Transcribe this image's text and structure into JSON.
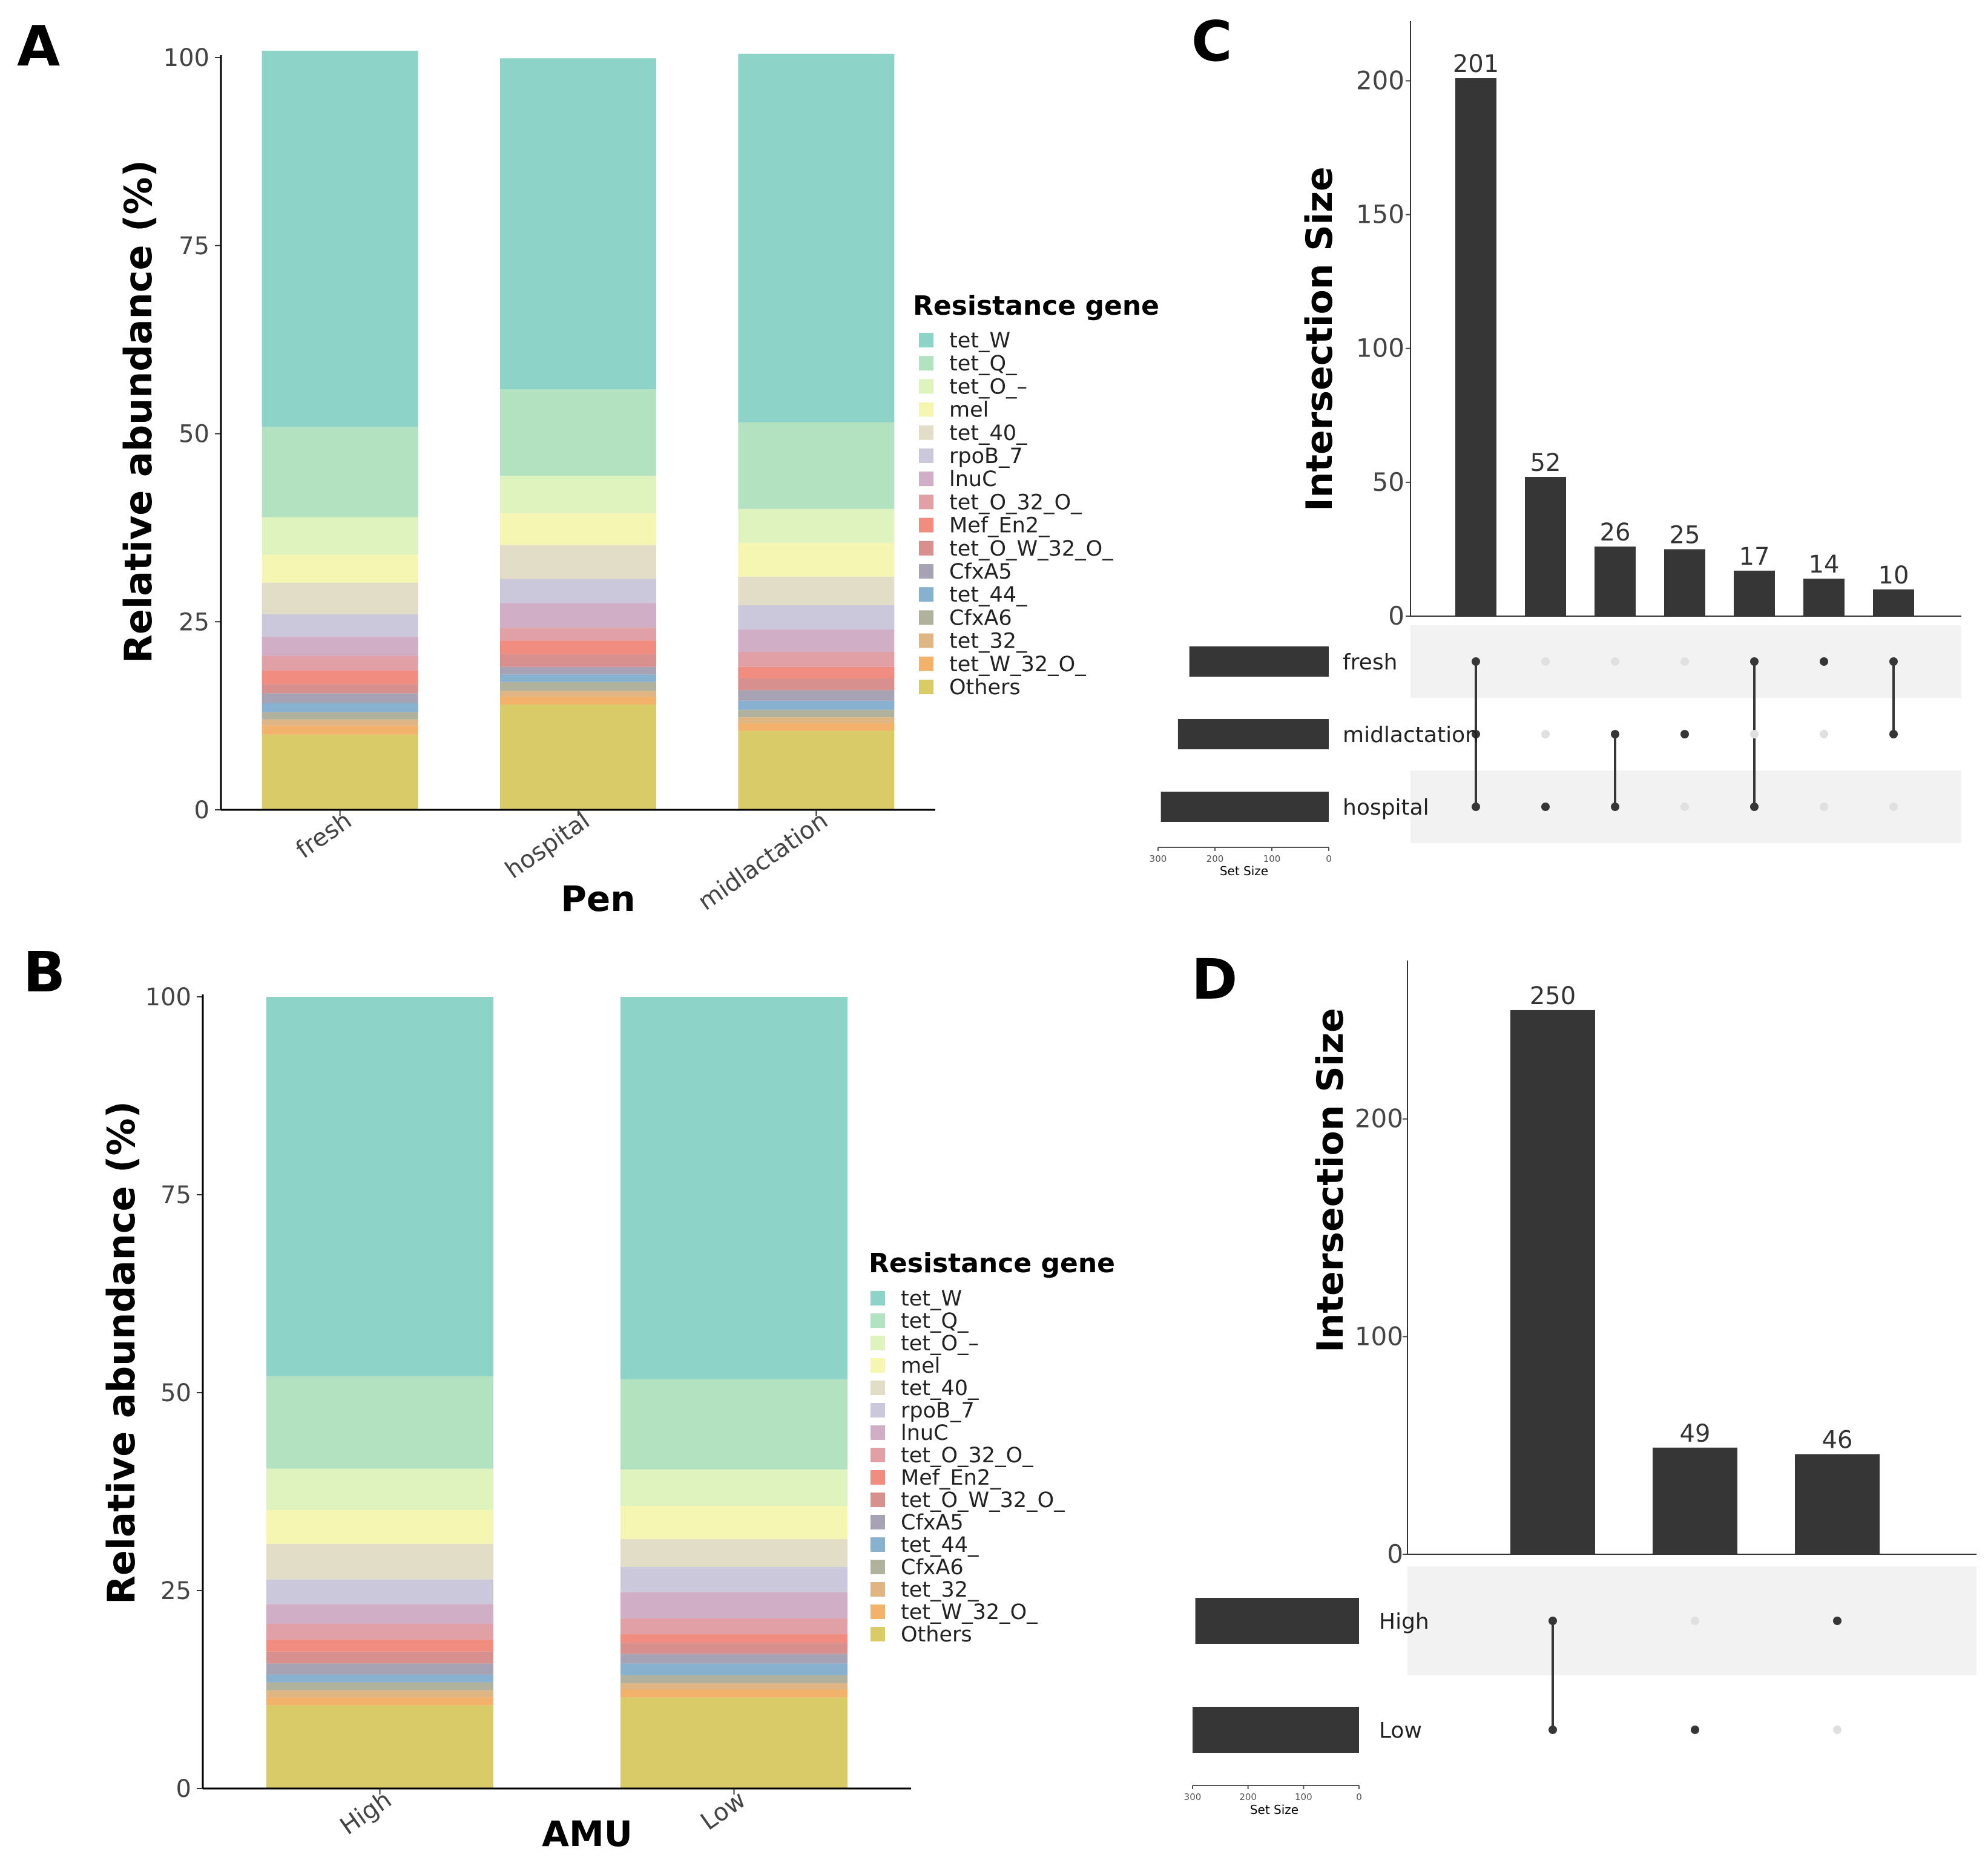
{
  "colors": {
    "tet_W": "#8dd3c7",
    "tet_Q_": "#b3e2c1",
    "tet_O_-": "#dff3bf",
    "mel": "#f6f6b3",
    "tet_40_": "#e1ddc6",
    "rpoB_7": "#cac8da",
    "lnuC": "#d0aec6",
    "tet_O_32_O_": "#e0a0a6",
    "Mef_En2_": "#f08d80",
    "tet_O_W_32_O_": "#d8908f",
    "CfxA5": "#a7a2b4",
    "tet_44_": "#88b0cf",
    "CfxA6": "#b1b29d",
    "tet_32_": "#dfb683",
    "tet_W_32_O_": "#f2b26b",
    "Others": "#d9cb68",
    "bar_dark": "#363636",
    "dot_dark": "#363636",
    "dot_light": "#e0e0e0",
    "stripe": "#f2f2f2"
  },
  "chart_data": [
    {
      "panel": "A",
      "type": "bar",
      "stacked": true,
      "xlabel": "Pen",
      "ylabel": "Relative abundance (%)",
      "ylim": [
        0,
        100
      ],
      "yticks": [
        "0",
        "25",
        "50",
        "75",
        "100"
      ],
      "categories": [
        "fresh",
        "hospital",
        "midlactation"
      ],
      "legend_title": "Resistance gene",
      "legend_entries": [
        "tet_W",
        "tet_Q_",
        "tet_O_–",
        "mel",
        "tet_40_",
        "rpoB_7",
        "lnuC",
        "tet_O_32_O_",
        "Mef_En2_",
        "tet_O_W_32_O_",
        "CfxA5",
        "tet_44_",
        "CfxA6",
        "tet_32_",
        "tet_W_32_O_",
        "Others"
      ],
      "series": [
        {
          "name": "Others",
          "values": [
            10,
            14,
            10.5
          ]
        },
        {
          "name": "tet_W_32_O_",
          "values": [
            1.2,
            1.0,
            1.0
          ]
        },
        {
          "name": "tet_32_",
          "values": [
            0.8,
            0.8,
            0.8
          ]
        },
        {
          "name": "CfxA6",
          "values": [
            1.0,
            1.2,
            1.0
          ]
        },
        {
          "name": "tet_44_",
          "values": [
            1.2,
            1.0,
            1.2
          ]
        },
        {
          "name": "CfxA5",
          "values": [
            1.3,
            1.0,
            1.4
          ]
        },
        {
          "name": "tet_O_W_32_O_",
          "values": [
            1.2,
            1.7,
            1.6
          ]
        },
        {
          "name": "Mef_En2_",
          "values": [
            1.8,
            1.8,
            1.5
          ]
        },
        {
          "name": "tet_O_32_O_",
          "values": [
            2.0,
            1.7,
            2.0
          ]
        },
        {
          "name": "lnuC",
          "values": [
            2.5,
            3.3,
            3.0
          ]
        },
        {
          "name": "rpoB_7",
          "values": [
            3.0,
            3.2,
            3.2
          ]
        },
        {
          "name": "tet_40_",
          "values": [
            4.2,
            4.5,
            3.8
          ]
        },
        {
          "name": "mel",
          "values": [
            3.7,
            4.2,
            4.5
          ]
        },
        {
          "name": "tet_O_-",
          "values": [
            5.0,
            5.0,
            4.5
          ]
        },
        {
          "name": "tet_Q_",
          "values": [
            12.0,
            11.5,
            11.5
          ]
        },
        {
          "name": "tet_W",
          "values": [
            50.0,
            44.0,
            49.0
          ]
        }
      ]
    },
    {
      "panel": "B",
      "type": "bar",
      "stacked": true,
      "xlabel": "AMU",
      "ylabel": "Relative abundance (%)",
      "ylim": [
        0,
        100
      ],
      "yticks": [
        "0",
        "25",
        "50",
        "75",
        "100"
      ],
      "categories": [
        "High",
        "Low"
      ],
      "legend_title": "Resistance gene",
      "legend_entries": [
        "tet_W",
        "tet_Q_",
        "tet_O_–",
        "mel",
        "tet_40_",
        "rpoB_7",
        "lnuC",
        "tet_O_32_O_",
        "Mef_En2_",
        "tet_O_W_32_O_",
        "CfxA5",
        "tet_44_",
        "CfxA6",
        "tet_32_",
        "tet_W_32_O_",
        "Others"
      ],
      "series": [
        {
          "name": "Others",
          "values": [
            10.5,
            11.5
          ]
        },
        {
          "name": "tet_W_32_O_",
          "values": [
            1.0,
            1.0
          ]
        },
        {
          "name": "tet_32_",
          "values": [
            0.9,
            0.8
          ]
        },
        {
          "name": "CfxA6",
          "values": [
            1.0,
            1.0
          ]
        },
        {
          "name": "tet_44_",
          "values": [
            1.0,
            1.5
          ]
        },
        {
          "name": "CfxA5",
          "values": [
            1.4,
            1.2
          ]
        },
        {
          "name": "tet_O_W_32_O_",
          "values": [
            1.5,
            1.4
          ]
        },
        {
          "name": "Mef_En2_",
          "values": [
            1.5,
            1.1
          ]
        },
        {
          "name": "tet_O_32_O_",
          "values": [
            2.0,
            2.0
          ]
        },
        {
          "name": "lnuC",
          "values": [
            2.5,
            3.3
          ]
        },
        {
          "name": "rpoB_7",
          "values": [
            3.1,
            3.2
          ]
        },
        {
          "name": "tet_40_",
          "values": [
            4.5,
            3.5
          ]
        },
        {
          "name": "mel",
          "values": [
            4.3,
            4.2
          ]
        },
        {
          "name": "tet_O_-",
          "values": [
            5.2,
            4.6
          ]
        },
        {
          "name": "tet_Q_",
          "values": [
            11.7,
            11.4
          ]
        },
        {
          "name": "tet_W",
          "values": [
            47.9,
            48.3
          ]
        }
      ]
    },
    {
      "panel": "C",
      "type": "bar",
      "subtype": "upset",
      "ylabel": "Intersection Size",
      "ylim": [
        0,
        220
      ],
      "yticks": [
        0,
        50,
        100,
        150,
        200
      ],
      "values": [
        201,
        52,
        26,
        25,
        17,
        14,
        10
      ],
      "value_labels": [
        "201",
        "52",
        "26",
        "25",
        "17",
        "14",
        "10"
      ],
      "sets": [
        "fresh",
        "midlactation",
        "hospital"
      ],
      "set_sizes": [
        245,
        265,
        295
      ],
      "set_size_label": "Set Size",
      "set_size_ticks": [
        "300",
        "200",
        "100",
        "0"
      ],
      "set_size_max": 300,
      "matrix": [
        [
          1,
          1,
          1
        ],
        [
          0,
          0,
          1
        ],
        [
          0,
          1,
          1
        ],
        [
          0,
          1,
          0
        ],
        [
          1,
          0,
          1
        ],
        [
          1,
          0,
          0
        ],
        [
          1,
          1,
          0
        ]
      ]
    },
    {
      "panel": "D",
      "type": "bar",
      "subtype": "upset",
      "ylabel": "Intersection Size",
      "ylim": [
        0,
        270
      ],
      "yticks": [
        0,
        100,
        200
      ],
      "values": [
        250,
        49,
        46
      ],
      "value_labels": [
        "250",
        "49",
        "46"
      ],
      "sets": [
        "High",
        "Low"
      ],
      "set_sizes": [
        295,
        300
      ],
      "set_size_label": "Set Size",
      "set_size_ticks": [
        "300",
        "200",
        "100",
        "0"
      ],
      "set_size_max": 300,
      "matrix": [
        [
          1,
          1
        ],
        [
          0,
          1
        ],
        [
          1,
          0
        ]
      ]
    }
  ]
}
